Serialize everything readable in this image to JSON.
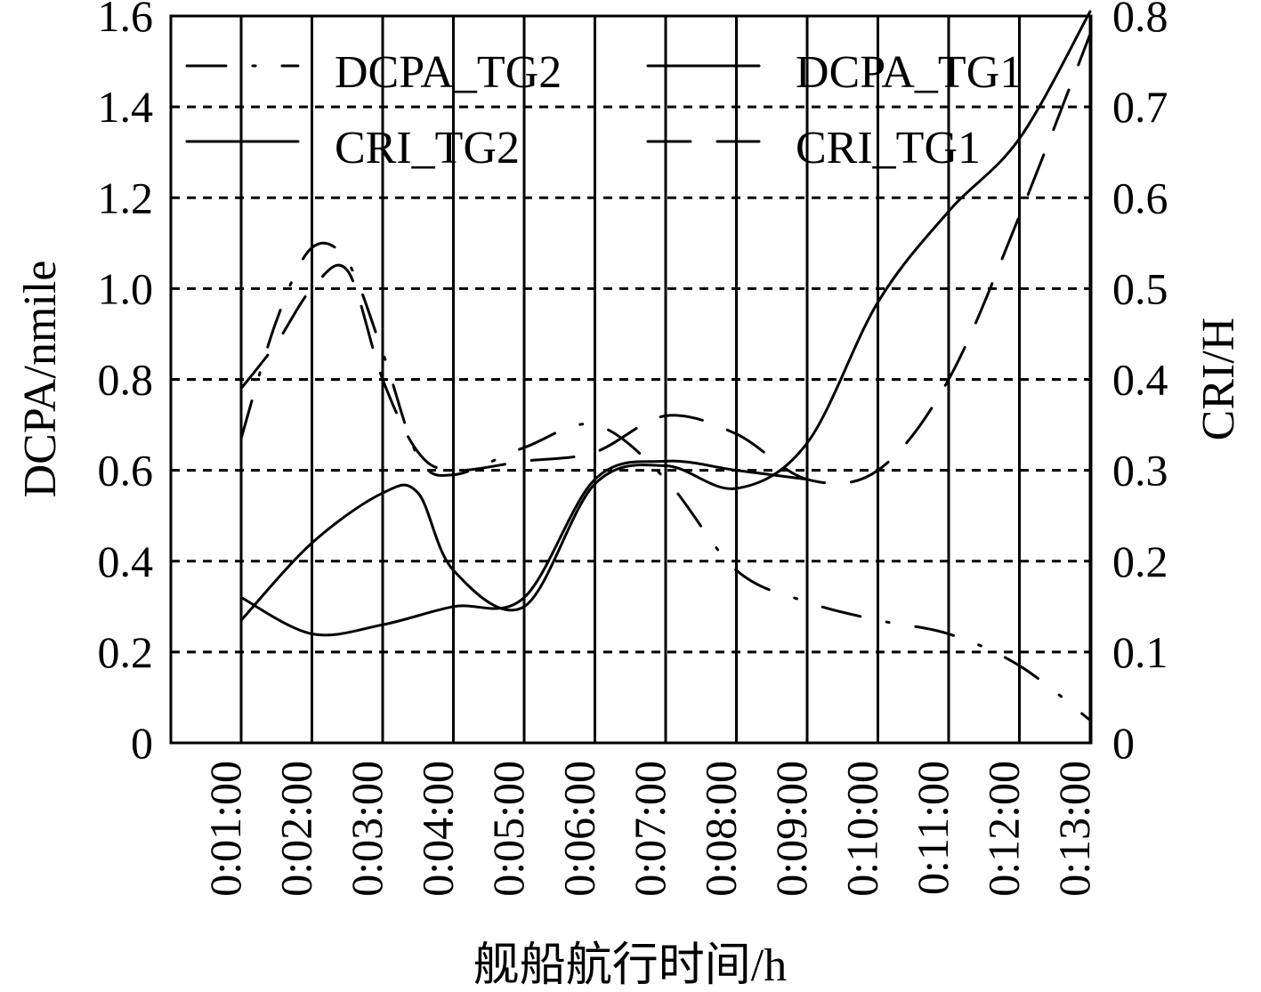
{
  "chart_data": {
    "type": "line",
    "xlabel": "舰船航行时间/h",
    "ylabel": "DCPA/nmile",
    "y2label": "CRI/H",
    "categories": [
      "0:01:00",
      "0:02:00",
      "0:03:00",
      "0:04:00",
      "0:05:00",
      "0:06:00",
      "0:07:00",
      "0:08:00",
      "0:09:00",
      "0:10:00",
      "0:11:00",
      "0:12:00",
      "0:13:00"
    ],
    "ylim": [
      0,
      1.6
    ],
    "yticks": [
      "0",
      "0.2",
      "0.4",
      "0.6",
      "0.8",
      "1.0",
      "1.2",
      "1.4",
      "1.6"
    ],
    "y2lim": [
      0,
      0.8
    ],
    "y2ticks": [
      "0",
      "0.1",
      "0.2",
      "0.3",
      "0.4",
      "0.5",
      "0.6",
      "0.7",
      "0.8"
    ],
    "grid": {
      "vertical": "solid",
      "horizontal": "dashed"
    },
    "legend_placement": "top",
    "series": [
      {
        "name": "DCPA_TG2",
        "axis": "left",
        "style": "dash-dot",
        "x": [
          "0:01:00",
          "0:01:30",
          "0:02:00",
          "0:02:30",
          "0:03:00",
          "0:03:30",
          "0:04:00",
          "0:05:00",
          "0:06:00",
          "0:07:00",
          "0:08:00",
          "0:09:00",
          "0:10:00",
          "0:11:00",
          "0:12:00",
          "0:13:00"
        ],
        "values": [
          0.67,
          0.93,
          1.09,
          1.06,
          0.86,
          0.63,
          0.59,
          0.65,
          0.7,
          0.58,
          0.38,
          0.31,
          0.27,
          0.24,
          0.17,
          0.05
        ]
      },
      {
        "name": "DCPA_TG1",
        "axis": "left",
        "style": "solid",
        "x": [
          "0:01:00",
          "0:02:00",
          "0:03:00",
          "0:03:30",
          "0:04:00",
          "0:05:00",
          "0:06:00",
          "0:07:00",
          "0:08:00",
          "0:09:00",
          "0:10:00",
          "0:11:00",
          "0:12:00",
          "0:13:00"
        ],
        "values": [
          0.27,
          0.44,
          0.55,
          0.55,
          0.38,
          0.3,
          0.57,
          0.61,
          0.56,
          0.66,
          0.97,
          1.17,
          1.33,
          1.61
        ]
      },
      {
        "name": "CRI_TG2",
        "axis": "right",
        "style": "solid",
        "x": [
          "0:01:00",
          "0:02:00",
          "0:03:00",
          "0:04:00",
          "0:05:00",
          "0:06:00",
          "0:07:00",
          "0:08:00",
          "0:09:00"
        ],
        "values": [
          0.16,
          0.12,
          0.13,
          0.15,
          0.16,
          0.29,
          0.31,
          0.3,
          0.29
        ]
      },
      {
        "name": "CRI_TG1",
        "axis": "right",
        "style": "long-dash",
        "x": [
          "0:01:00",
          "0:01:30",
          "0:02:00",
          "0:02:30",
          "0:03:00",
          "0:03:30",
          "0:04:00",
          "0:05:00",
          "0:06:00",
          "0:07:00",
          "0:08:00",
          "0:09:00",
          "0:10:00",
          "0:11:00",
          "0:12:00",
          "0:13:00"
        ],
        "values": [
          0.39,
          0.44,
          0.5,
          0.52,
          0.4,
          0.32,
          0.3,
          0.31,
          0.32,
          0.36,
          0.34,
          0.29,
          0.3,
          0.4,
          0.58,
          0.78
        ]
      }
    ]
  }
}
